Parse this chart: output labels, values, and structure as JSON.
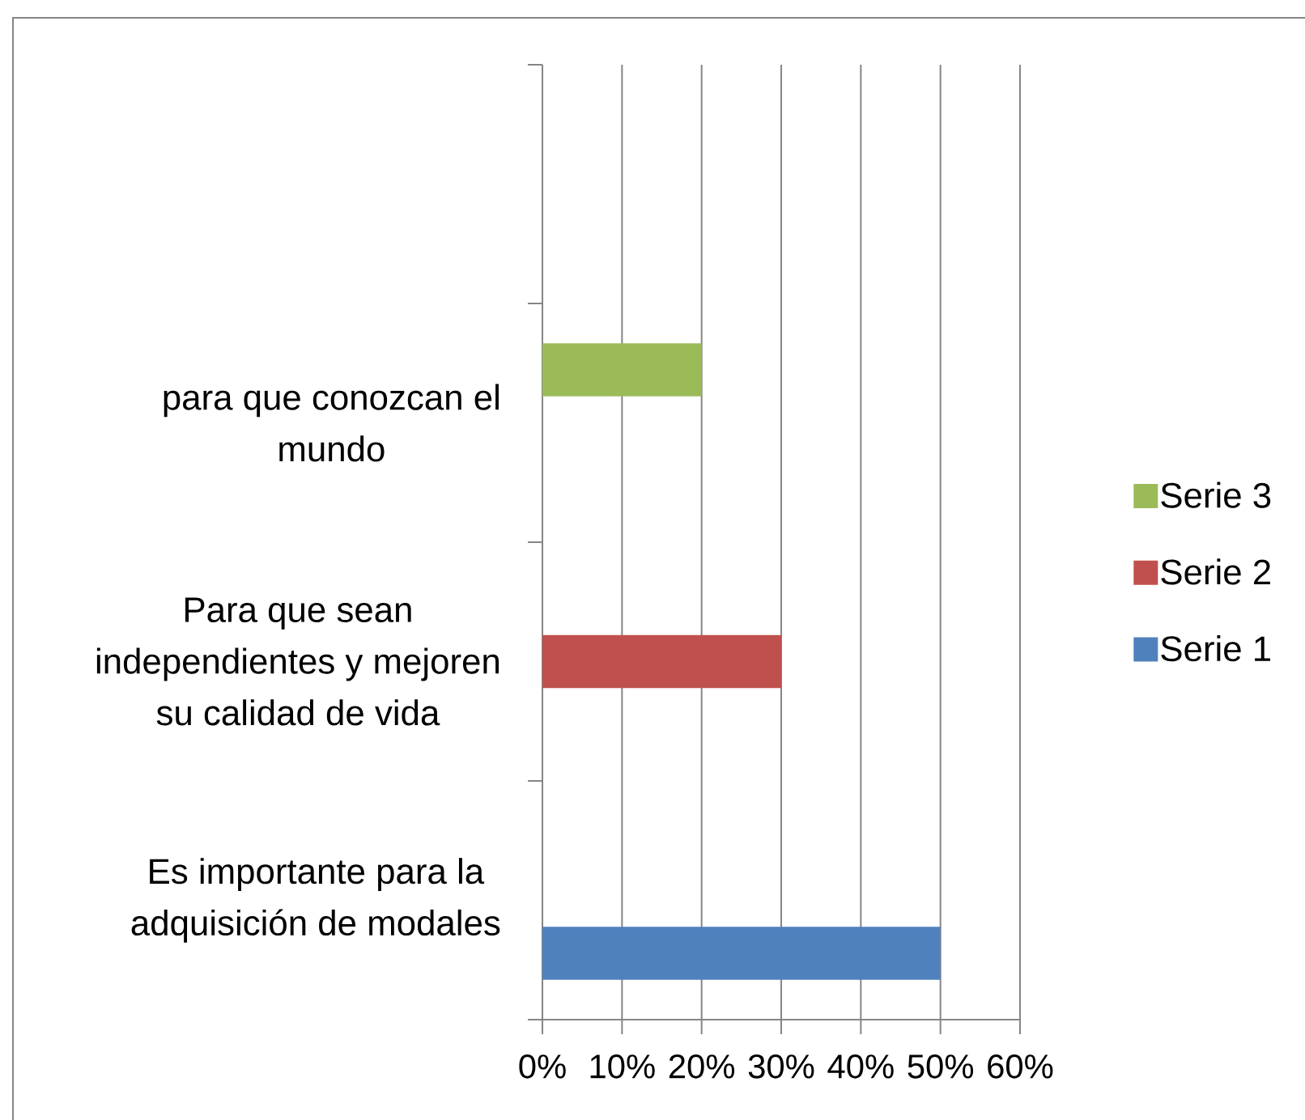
{
  "chart_data": {
    "type": "bar",
    "orientation": "horizontal",
    "categories": [
      null,
      "para que conozcan el mundo",
      "Para que sean independientes y mejoren su calidad de vida",
      "Es importante para la adquisición de modales"
    ],
    "series": [
      {
        "name": "Serie 1",
        "color": "#4f81bd",
        "values": [
          null,
          null,
          null,
          50
        ]
      },
      {
        "name": "Serie 2",
        "color": "#c0504d",
        "values": [
          null,
          null,
          30,
          null
        ]
      },
      {
        "name": "Serie 3",
        "color": "#9bbb59",
        "values": [
          null,
          20,
          null,
          null
        ]
      }
    ],
    "xlim": [
      0,
      60
    ],
    "xticks": [
      {
        "value": 0,
        "label": "0%"
      },
      {
        "value": 10,
        "label": "10%"
      },
      {
        "value": 20,
        "label": "20%"
      },
      {
        "value": 30,
        "label": "30%"
      },
      {
        "value": 40,
        "label": "40%"
      },
      {
        "value": 50,
        "label": "50%"
      },
      {
        "value": 60,
        "label": "60%"
      }
    ],
    "grid": "x",
    "legend": "right"
  }
}
